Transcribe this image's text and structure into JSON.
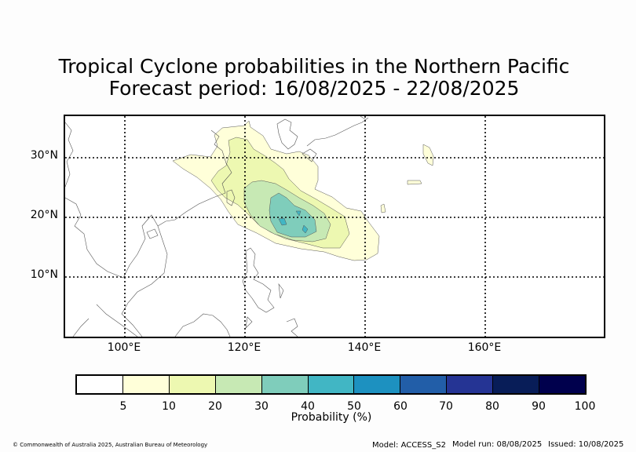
{
  "title": {
    "line1": "Tropical Cyclone probabilities in the Northern Pacific",
    "line2": "Forecast period: 16/08/2025 - 22/08/2025"
  },
  "map": {
    "lat_labels": [
      "30°N",
      "20°N",
      "10°N"
    ],
    "lon_labels": [
      "100°E",
      "120°E",
      "140°E",
      "160°E"
    ],
    "extent": {
      "lon_min": 90,
      "lon_max": 180,
      "lat_min": 0,
      "lat_max": 37
    },
    "gridlines": true
  },
  "colorbar": {
    "label": "Probability (%)",
    "ticks": [
      "5",
      "10",
      "20",
      "30",
      "40",
      "50",
      "60",
      "70",
      "80",
      "90",
      "100"
    ],
    "colors": [
      "#ffffff",
      "#ffffd9",
      "#edf8b1",
      "#c7e9b4",
      "#7fcdbb",
      "#41b6c4",
      "#1d91c0",
      "#225ea8",
      "#253494",
      "#081d58",
      "#00004d"
    ]
  },
  "footer": {
    "copyright": "© Commonwealth of Australia 2025, Australian Bureau of Meteorology",
    "model": "Model: ACCESS_S2",
    "model_run": "Model run: 08/08/2025",
    "issued": "Issued: 10/08/2025"
  }
}
